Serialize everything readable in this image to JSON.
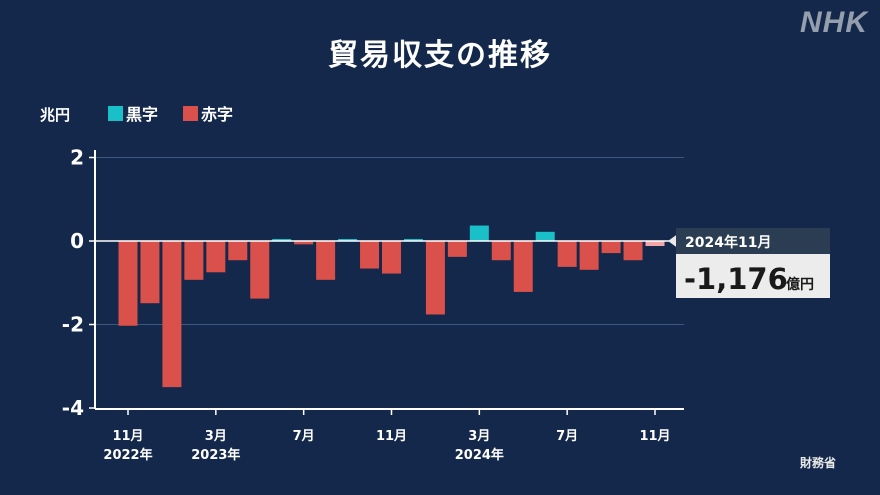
{
  "title": "貿易収支の推移",
  "logo": "NHK",
  "source": "財務省",
  "chart_data": {
    "type": "bar",
    "y_unit": "兆円",
    "ylim": [
      -4,
      3
    ],
    "yticks": [
      "2",
      "0",
      "-2",
      "-4"
    ],
    "grid": true,
    "legend": [
      {
        "name": "黒字",
        "color": "#19c0c8"
      },
      {
        "name": "赤字",
        "color": "#d9514a"
      }
    ],
    "categories": [
      "2022-11",
      "2022-12",
      "2023-01",
      "2023-02",
      "2023-03",
      "2023-04",
      "2023-05",
      "2023-06",
      "2023-07",
      "2023-08",
      "2023-09",
      "2023-10",
      "2023-11",
      "2023-12",
      "2024-01",
      "2024-02",
      "2024-03",
      "2024-04",
      "2024-05",
      "2024-06",
      "2024-07",
      "2024-08",
      "2024-09",
      "2024-10",
      "2024-11"
    ],
    "values": [
      -2.03,
      -1.49,
      -3.5,
      -0.93,
      -0.75,
      -0.46,
      -1.38,
      0.04,
      -0.08,
      -0.93,
      0.01,
      -0.66,
      -0.78,
      0.03,
      -1.76,
      -0.38,
      0.37,
      -0.46,
      -1.22,
      0.22,
      -0.62,
      -0.69,
      -0.29,
      -0.46,
      -0.12
    ],
    "x_tick_labels": [
      {
        "index": 0,
        "month": "11月",
        "year": "2022年"
      },
      {
        "index": 4,
        "month": "3月",
        "year": "2023年"
      },
      {
        "index": 8,
        "month": "7月",
        "year": ""
      },
      {
        "index": 12,
        "month": "11月",
        "year": ""
      },
      {
        "index": 16,
        "month": "3月",
        "year": "2024年"
      },
      {
        "index": 20,
        "month": "7月",
        "year": ""
      },
      {
        "index": 24,
        "month": "11月",
        "year": ""
      }
    ],
    "callout": {
      "index": 24,
      "date": "2024年11月",
      "value": "-1,176",
      "unit": "億円",
      "highlight_color": "#f3a6a8"
    }
  }
}
